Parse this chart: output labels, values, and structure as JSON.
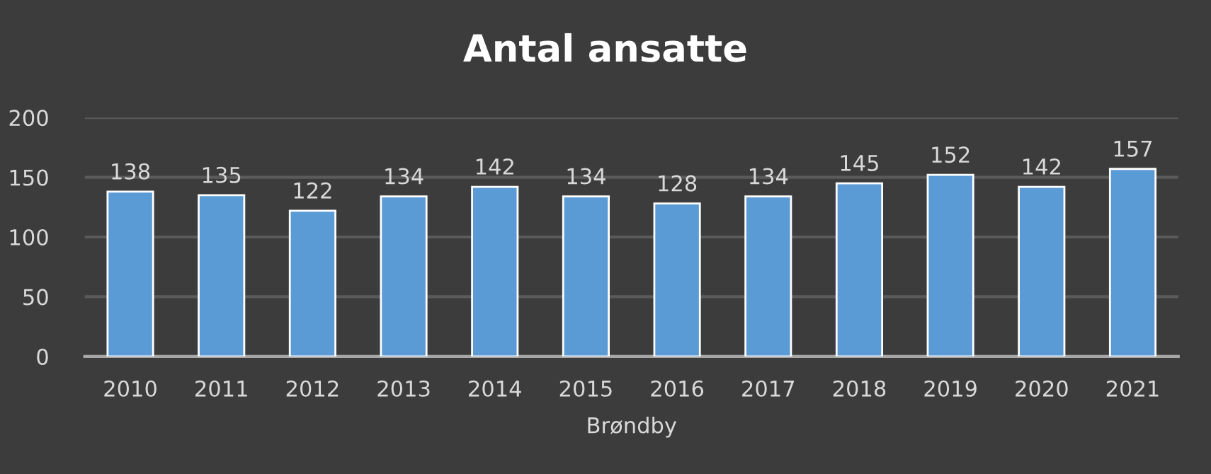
{
  "chart_data": {
    "type": "bar",
    "title": "Antal ansatte",
    "xlabel": "Brøndby",
    "categories": [
      "2010",
      "2011",
      "2012",
      "2013",
      "2014",
      "2015",
      "2016",
      "2017",
      "2018",
      "2019",
      "2020",
      "2021"
    ],
    "values": [
      138,
      135,
      122,
      134,
      142,
      134,
      128,
      134,
      145,
      152,
      142,
      157
    ],
    "color": "#5b9bd5",
    "ylim": [
      0,
      200
    ],
    "yticks": [
      0,
      50,
      100,
      150,
      200
    ],
    "grid": "y",
    "data_labels": true
  }
}
